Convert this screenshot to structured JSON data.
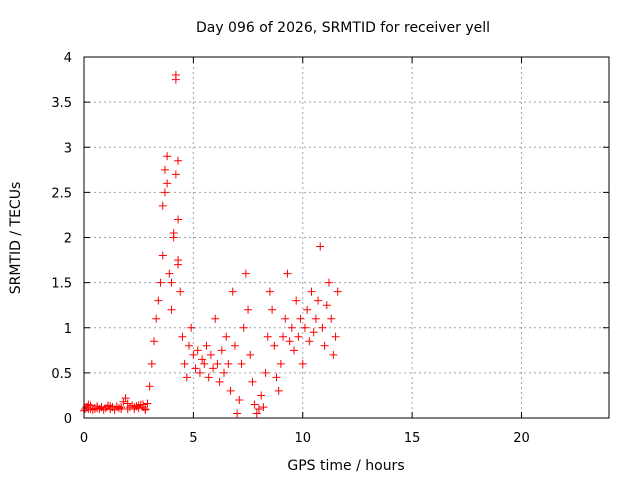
{
  "chart_data": {
    "type": "scatter",
    "title": "Day 096 of 2026, SRMTID for receiver yell",
    "xlabel": "GPS time / hours",
    "ylabel": "SRMTID / TECUs",
    "xlim": [
      0,
      24
    ],
    "ylim": [
      0,
      4
    ],
    "xticks": [
      0,
      5,
      10,
      15,
      20
    ],
    "xtick_labels": [
      "0",
      "5",
      "10",
      "15",
      "20"
    ],
    "yticks": [
      0,
      0.5,
      1,
      1.5,
      2,
      2.5,
      3,
      3.5,
      4
    ],
    "ytick_labels": [
      "0",
      "0.5",
      "1",
      "1.5",
      "2",
      "2.5",
      "3",
      "3.5",
      "4"
    ],
    "grid": true,
    "marker": "+",
    "series_color": "#ff0000",
    "series": [
      {
        "name": "SRMTID",
        "x": [
          0.0,
          0.1,
          0.2,
          0.3,
          0.4,
          0.5,
          0.6,
          0.7,
          0.8,
          0.9,
          1.0,
          1.1,
          1.2,
          1.3,
          1.4,
          1.5,
          1.6,
          1.7,
          1.8,
          1.9,
          2.0,
          2.1,
          2.2,
          2.3,
          2.4,
          2.5,
          2.6,
          2.7,
          2.8,
          2.9,
          3.0,
          3.1,
          3.2,
          3.3,
          3.4,
          3.5,
          3.6,
          3.7,
          3.8,
          3.9,
          4.0,
          4.1,
          4.2,
          4.3,
          4.4,
          4.5,
          4.6,
          4.7,
          4.8,
          4.9,
          5.0,
          5.1,
          5.2,
          5.3,
          5.4,
          5.5,
          5.6,
          5.7,
          5.8,
          5.9,
          6.0,
          6.1,
          6.2,
          6.3,
          6.4,
          6.5,
          6.6,
          6.7,
          6.8,
          6.9,
          7.0,
          7.1,
          7.2,
          7.3,
          7.4,
          7.5,
          7.6,
          7.7,
          7.8,
          7.9,
          8.0,
          8.1,
          8.2,
          8.3,
          8.4,
          8.5,
          8.6,
          8.7,
          8.8,
          8.9,
          9.0,
          9.1,
          9.2,
          9.3,
          9.4,
          9.5,
          9.6,
          9.7,
          9.8,
          9.9,
          10.0,
          10.1,
          10.2,
          10.3,
          10.4,
          10.5,
          10.6,
          10.7,
          10.8,
          10.9,
          11.0,
          11.1,
          11.2,
          11.3,
          11.4,
          11.5,
          11.6,
          4.2,
          4.2,
          4.3,
          4.3,
          4.1,
          3.8,
          3.7,
          3.6,
          4.3,
          4.0,
          0.2,
          0.5,
          0.8,
          1.2,
          1.6,
          2.0,
          2.5,
          2.8,
          0.05,
          0.15,
          0.3,
          0.6,
          1.1,
          1.7,
          2.3,
          2.7
        ],
        "y": [
          0.08,
          0.12,
          0.1,
          0.14,
          0.09,
          0.11,
          0.13,
          0.1,
          0.12,
          0.09,
          0.11,
          0.14,
          0.1,
          0.12,
          0.09,
          0.13,
          0.11,
          0.12,
          0.18,
          0.22,
          0.16,
          0.12,
          0.14,
          0.1,
          0.13,
          0.11,
          0.15,
          0.12,
          0.1,
          0.16,
          0.35,
          0.6,
          0.85,
          1.1,
          1.3,
          1.5,
          1.8,
          2.5,
          2.9,
          1.6,
          1.2,
          2.0,
          2.7,
          2.85,
          1.4,
          0.9,
          0.6,
          0.45,
          0.8,
          1.0,
          0.7,
          0.55,
          0.75,
          0.5,
          0.65,
          0.6,
          0.8,
          0.45,
          0.7,
          0.55,
          1.1,
          0.6,
          0.4,
          0.75,
          0.5,
          0.9,
          0.6,
          0.3,
          1.4,
          0.8,
          0.05,
          0.2,
          0.6,
          1.0,
          1.6,
          1.2,
          0.7,
          0.4,
          0.15,
          0.05,
          0.1,
          0.25,
          0.12,
          0.5,
          0.9,
          1.4,
          1.2,
          0.8,
          0.45,
          0.3,
          0.6,
          0.9,
          1.1,
          1.6,
          0.85,
          1.0,
          0.75,
          1.3,
          0.9,
          1.1,
          0.6,
          1.0,
          1.2,
          0.85,
          1.4,
          0.95,
          1.1,
          1.3,
          1.9,
          1.0,
          0.8,
          1.25,
          1.5,
          1.1,
          0.7,
          0.9,
          1.4,
          3.8,
          3.75,
          2.2,
          1.75,
          2.05,
          2.6,
          2.75,
          2.35,
          1.7,
          1.5,
          0.15,
          0.1,
          0.12,
          0.13,
          0.11,
          0.1,
          0.14,
          0.09,
          0.1,
          0.12,
          0.1,
          0.11,
          0.13,
          0.1,
          0.12,
          0.15
        ]
      }
    ]
  }
}
